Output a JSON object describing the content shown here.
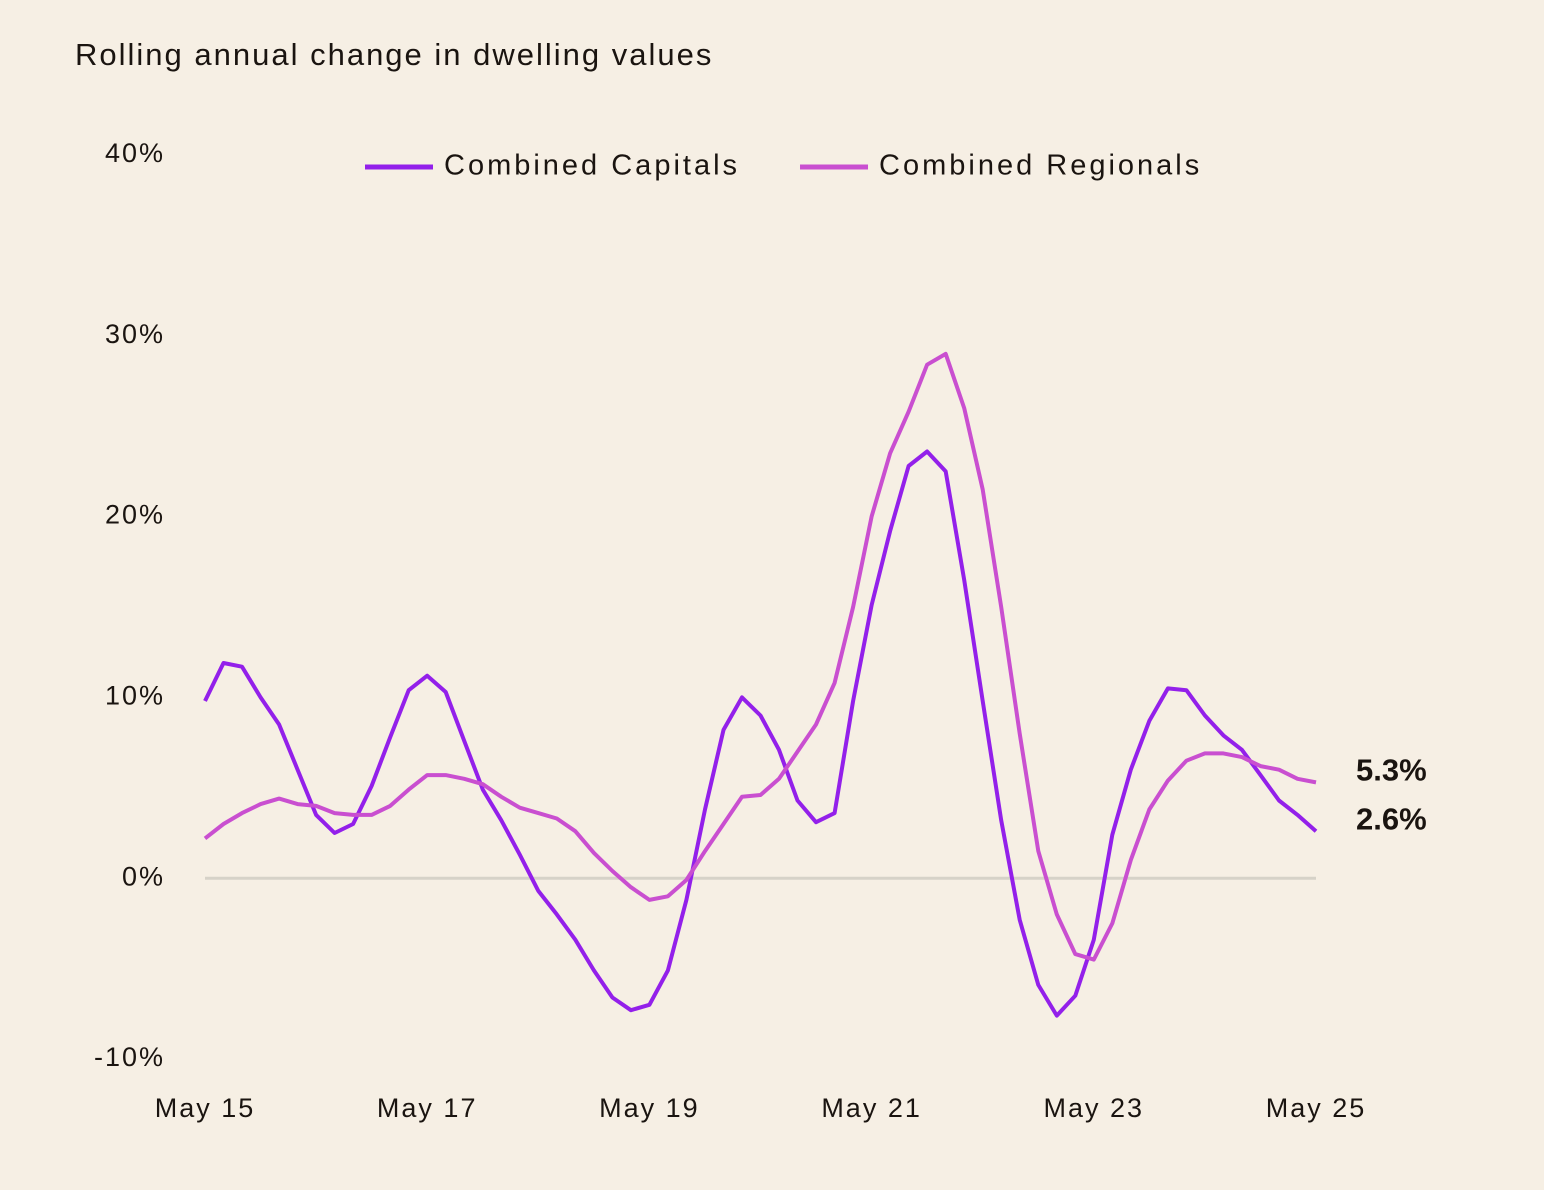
{
  "chart_data": {
    "type": "line",
    "title": "Rolling annual change in dwelling values",
    "categories": [
      "May 15",
      null,
      null,
      null,
      null,
      null,
      null,
      null,
      null,
      null,
      null,
      null,
      "May 17",
      null,
      null,
      null,
      null,
      null,
      null,
      null,
      null,
      null,
      null,
      null,
      "May 19",
      null,
      null,
      null,
      null,
      null,
      null,
      null,
      null,
      null,
      null,
      null,
      "May 21",
      null,
      null,
      null,
      null,
      null,
      null,
      null,
      null,
      null,
      null,
      null,
      "May 23",
      null,
      null,
      null,
      null,
      null,
      null,
      null,
      null,
      null,
      null,
      null,
      "May 25"
    ],
    "series": [
      {
        "name": "Combined Capitals",
        "color": "#9320ea",
        "end_label": "2.6%",
        "values": [
          9.8,
          11.9,
          11.7,
          10.0,
          8.5,
          6.0,
          3.5,
          2.5,
          3.0,
          5.1,
          7.8,
          10.4,
          11.2,
          10.3,
          7.6,
          4.9,
          3.2,
          1.3,
          -0.7,
          -2.0,
          -3.4,
          -5.1,
          -6.6,
          -7.3,
          -7.0,
          -5.1,
          -1.2,
          3.8,
          8.2,
          10.0,
          9.0,
          7.1,
          4.3,
          3.1,
          3.6,
          9.8,
          15.1,
          19.2,
          22.8,
          23.6,
          22.5,
          16.5,
          9.8,
          3.2,
          -2.3,
          -5.9,
          -7.6,
          -6.5,
          -3.4,
          2.4,
          6.0,
          8.7,
          10.5,
          10.4,
          9.0,
          7.9,
          7.1,
          5.7,
          4.3,
          3.5,
          2.6
        ]
      },
      {
        "name": "Combined Regionals",
        "color": "#c94fd0",
        "end_label": "5.3%",
        "values": [
          2.2,
          3.0,
          3.6,
          4.1,
          4.4,
          4.1,
          4.0,
          3.6,
          3.5,
          3.5,
          4.0,
          4.9,
          5.7,
          5.7,
          5.5,
          5.2,
          4.5,
          3.9,
          3.6,
          3.3,
          2.6,
          1.4,
          0.4,
          -0.5,
          -1.2,
          -1.0,
          -0.1,
          1.5,
          3.0,
          4.5,
          4.6,
          5.5,
          7.0,
          8.5,
          10.8,
          15.0,
          20.0,
          23.5,
          25.8,
          28.4,
          29.0,
          26.0,
          21.5,
          15.0,
          8.0,
          1.5,
          -2.0,
          -4.2,
          -4.5,
          -2.5,
          1.0,
          3.8,
          5.4,
          6.5,
          6.9,
          6.9,
          6.7,
          6.2,
          6.0,
          5.5,
          5.3
        ]
      }
    ],
    "ylim": [
      -10,
      40
    ],
    "yticks": [
      {
        "value": -10,
        "label": "-10%"
      },
      {
        "value": 0,
        "label": "0%"
      },
      {
        "value": 10,
        "label": "10%"
      },
      {
        "value": 20,
        "label": "20%"
      },
      {
        "value": 30,
        "label": "30%"
      },
      {
        "value": 40,
        "label": "40%"
      }
    ],
    "zero_line": true,
    "legend": "top"
  }
}
